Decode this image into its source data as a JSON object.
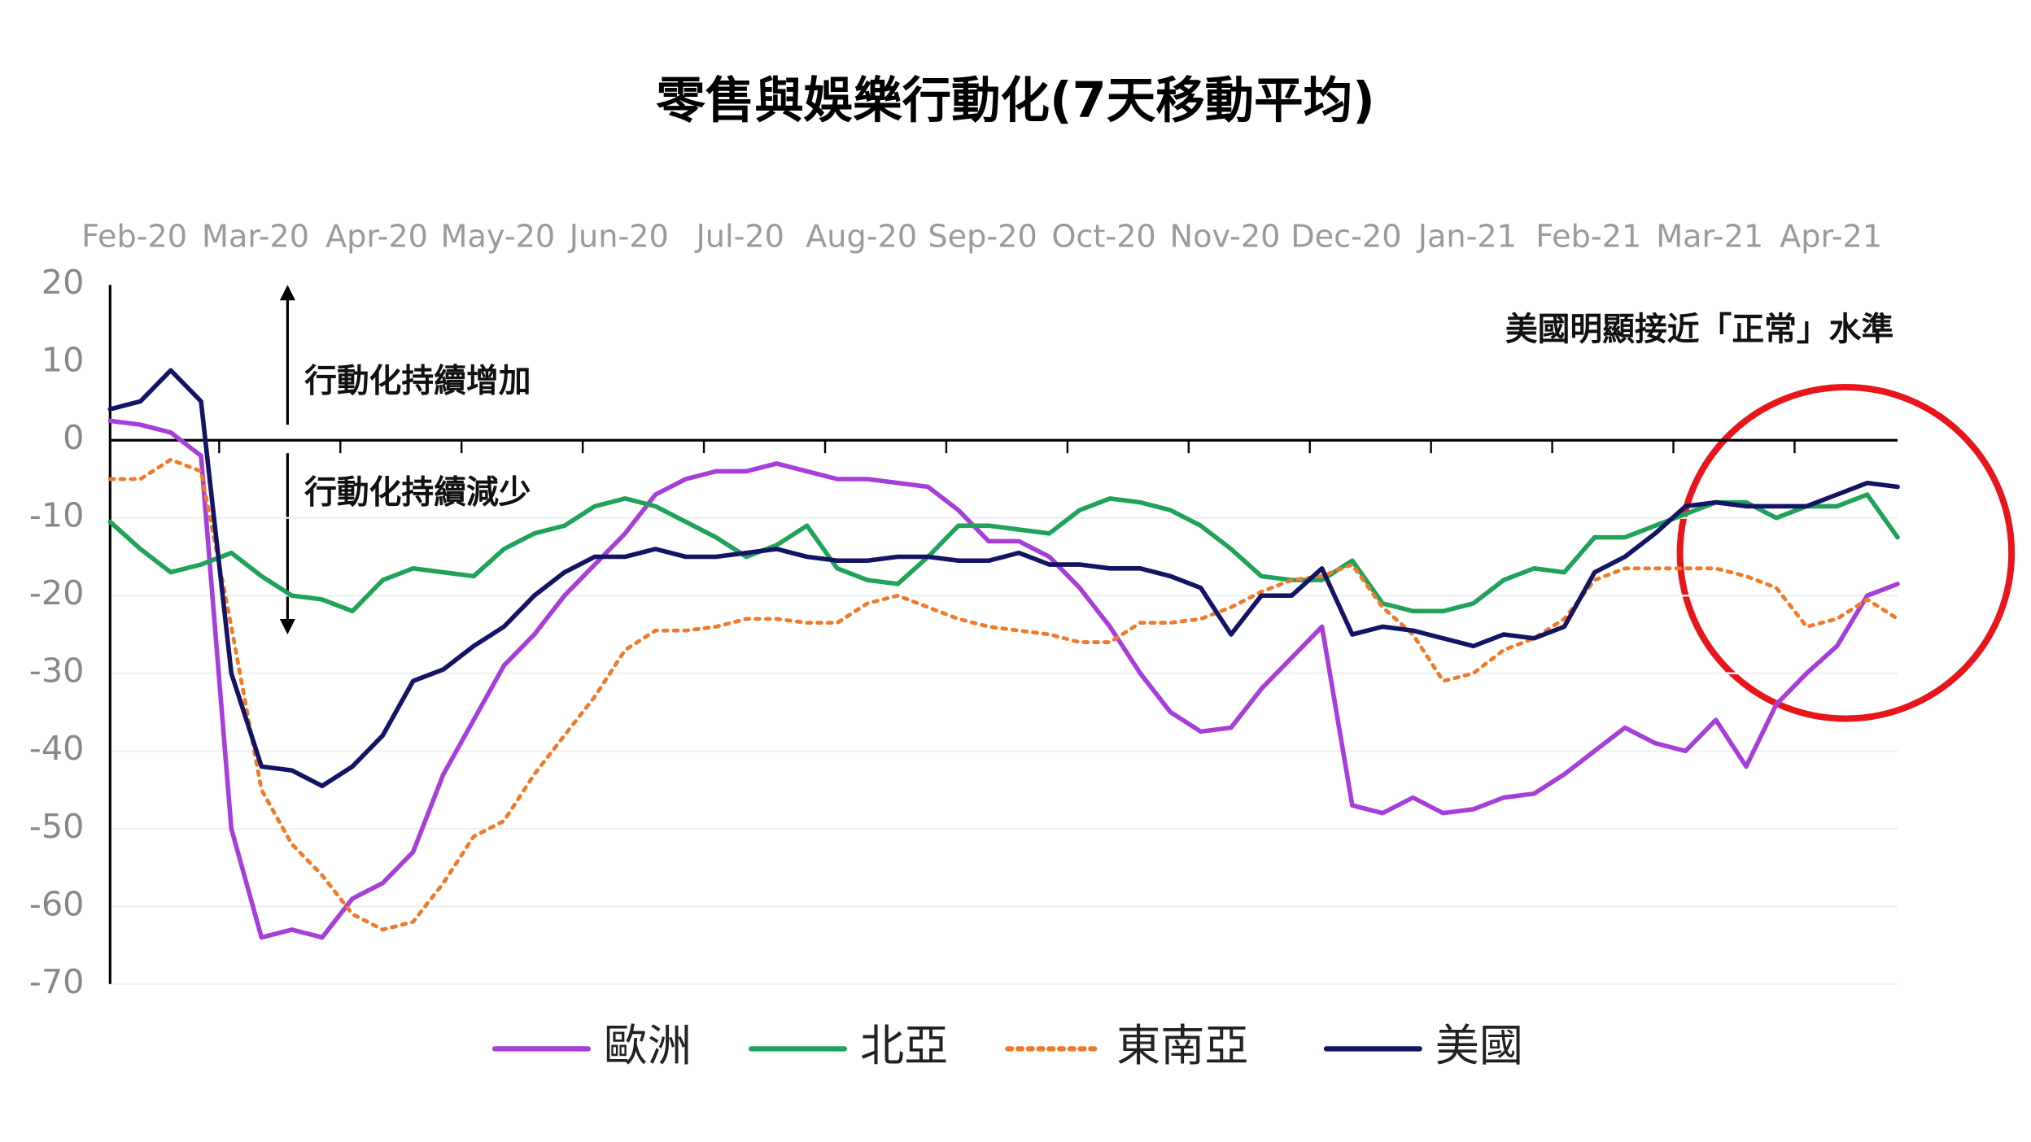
{
  "chart_data": {
    "type": "line",
    "title": "零售與娛樂行動化(7天移動平均)",
    "annotations": [
      "行動化持續增加",
      "行動化持續減少",
      "美國明顯接近「正常」水準"
    ],
    "x": [
      0.1,
      0.35,
      0.6,
      0.85,
      1.1,
      1.35,
      1.6,
      1.85,
      2.1,
      2.35,
      2.6,
      2.85,
      3.1,
      3.35,
      3.6,
      3.85,
      4.1,
      4.35,
      4.6,
      4.85,
      5.1,
      5.35,
      5.6,
      5.85,
      6.1,
      6.35,
      6.6,
      6.85,
      7.1,
      7.35,
      7.6,
      7.85,
      8.1,
      8.35,
      8.6,
      8.85,
      9.1,
      9.35,
      9.6,
      9.85,
      10.1,
      10.35,
      10.6,
      10.85,
      11.1,
      11.35,
      11.6,
      11.85,
      12.1,
      12.35,
      12.6,
      12.85,
      13.1,
      13.35,
      13.6,
      13.85,
      14.1,
      14.35,
      14.6,
      14.85
    ],
    "xlim": [
      0.1,
      14.85
    ],
    "xticks": [
      {
        "value": 0,
        "label": "Feb-20"
      },
      {
        "value": 1,
        "label": "Mar-20"
      },
      {
        "value": 2,
        "label": "Apr-20"
      },
      {
        "value": 3,
        "label": "May-20"
      },
      {
        "value": 4,
        "label": "Jun-20"
      },
      {
        "value": 5,
        "label": "Jul-20"
      },
      {
        "value": 6,
        "label": "Aug-20"
      },
      {
        "value": 7,
        "label": "Sep-20"
      },
      {
        "value": 8,
        "label": "Oct-20"
      },
      {
        "value": 9,
        "label": "Nov-20"
      },
      {
        "value": 10,
        "label": "Dec-20"
      },
      {
        "value": 11,
        "label": "Jan-21"
      },
      {
        "value": 12,
        "label": "Feb-21"
      },
      {
        "value": 13,
        "label": "Mar-21"
      },
      {
        "value": 14,
        "label": "Apr-21"
      }
    ],
    "ylim": [
      -70,
      20
    ],
    "yticks": [
      20,
      10,
      0,
      -10,
      -20,
      -30,
      -40,
      -50,
      -60,
      -70
    ],
    "grid": true,
    "series": [
      {
        "name": "歐洲",
        "color": "#a63fd9",
        "dash": false,
        "values": [
          2.5,
          2,
          1,
          -2,
          -50,
          -64,
          -63,
          -64,
          -59,
          -57,
          -53,
          -43,
          -36,
          -29,
          -25,
          -20,
          -16,
          -12,
          -7,
          -5,
          -4,
          -4,
          -3,
          -4,
          -5,
          -5,
          -5.5,
          -6,
          -9,
          -13,
          -13,
          -15,
          -19,
          -24,
          -30,
          -35,
          -37.5,
          -37,
          -32,
          -28,
          -24,
          -47,
          -48,
          -46,
          -48,
          -47.5,
          -46,
          -45.5,
          -43,
          -40,
          -37,
          -39,
          -40,
          -36,
          -42,
          -34,
          -30,
          -26.5,
          -20,
          -18.5
        ]
      },
      {
        "name": "北亞",
        "color": "#1fa35a",
        "dash": false,
        "values": [
          -10.5,
          -14,
          -17,
          -16,
          -14.5,
          -17.5,
          -20,
          -20.5,
          -22,
          -18,
          -16.5,
          -17,
          -17.5,
          -14,
          -12,
          -11,
          -8.5,
          -7.5,
          -8.5,
          -10.5,
          -12.5,
          -15,
          -13.5,
          -11,
          -16.5,
          -18,
          -18.5,
          -15,
          -11,
          -11,
          -11.5,
          -12,
          -9,
          -7.5,
          -8,
          -9,
          -11,
          -14,
          -17.5,
          -18,
          -18,
          -15.5,
          -21,
          -22,
          -22,
          -21,
          -18,
          -16.5,
          -17,
          -12.5,
          -12.5,
          -11,
          -9.5,
          -8,
          -8,
          -10,
          -8.5,
          -8.5,
          -7,
          -12.5
        ]
      },
      {
        "name": "東南亞",
        "color": "#f07a2a",
        "dash": true,
        "values": [
          -5,
          -5,
          -2.5,
          -4,
          -24,
          -45,
          -52,
          -56,
          -61,
          -63,
          -62,
          -57,
          -51,
          -49,
          -43,
          -38,
          -33,
          -27,
          -24.5,
          -24.5,
          -24,
          -23,
          -23,
          -23.5,
          -23.5,
          -21,
          -20,
          -21.5,
          -23,
          -24,
          -24.5,
          -25,
          -26,
          -26,
          -23.5,
          -23.5,
          -23,
          -21.5,
          -19.5,
          -18,
          -17.5,
          -16,
          -21.5,
          -25,
          -31,
          -30,
          -27,
          -25.5,
          -23,
          -18,
          -16.5,
          -16.5,
          -16.5,
          -16.5,
          -17.5,
          -19,
          -24,
          -23,
          -20.5,
          -23
        ]
      },
      {
        "name": "美國",
        "color": "#141464",
        "dash": false,
        "values": [
          4,
          5,
          9,
          5,
          -30,
          -42,
          -42.5,
          -44.5,
          -42,
          -38,
          -31,
          -29.5,
          -26.5,
          -24,
          -20,
          -17,
          -15,
          -15,
          -14,
          -15,
          -15,
          -14.5,
          -14,
          -15,
          -15.5,
          -15.5,
          -15,
          -15,
          -15.5,
          -15.5,
          -14.5,
          -16,
          -16,
          -16.5,
          -16.5,
          -17.5,
          -19,
          -25,
          -20,
          -20,
          -16.5,
          -25,
          -24,
          -24.5,
          -25.5,
          -26.5,
          -25,
          -25.5,
          -24,
          -17,
          -15,
          -12,
          -8.5,
          -8,
          -8.5,
          -8.5,
          -8.5,
          -7,
          -5.5,
          -6
        ]
      }
    ]
  }
}
